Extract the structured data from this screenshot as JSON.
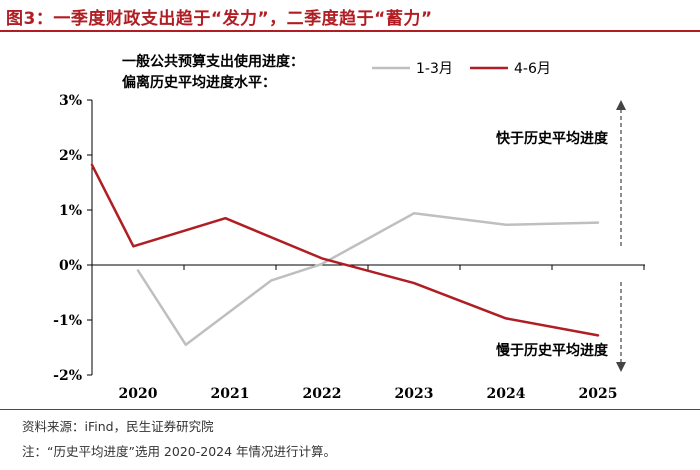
{
  "figure": {
    "title": "图3：一季度财政支出趋于“发力”，二季度趋于“蓄力”",
    "source": "资料来源：iFind，民生证券研究院",
    "note": "注：“历史平均进度”选用 2020-2024 年情况进行计算。"
  },
  "chart_data": {
    "type": "line",
    "title_lines": [
      "一般公共预算支出使用进度：",
      "偏离历史平均进度水平："
    ],
    "xlabel": "",
    "ylabel": "",
    "categories": [
      "2020",
      "2021",
      "2022",
      "2023",
      "2024",
      "2025"
    ],
    "ylim": [
      -2,
      3
    ],
    "yticks": [
      -2,
      -1,
      0,
      1,
      2,
      3
    ],
    "ytick_labels": [
      "-2%",
      "-1%",
      "0%",
      "1%",
      "2%",
      "3%"
    ],
    "grid": false,
    "legend_position": "top-right",
    "series": [
      {
        "name": "1-3月",
        "color": "#bfbfbf",
        "points": [
          [
            0.0,
            -0.1
          ],
          [
            0.52,
            -1.45
          ],
          [
            1.45,
            -0.28
          ],
          [
            2.0,
            0.02
          ],
          [
            3.0,
            0.94
          ],
          [
            4.0,
            0.73
          ],
          [
            5.0,
            0.77
          ]
        ]
      },
      {
        "name": "4-6月",
        "color": "#b01e23",
        "points": [
          [
            -0.5,
            1.82
          ],
          [
            -0.05,
            0.34
          ],
          [
            0.95,
            0.85
          ],
          [
            2.0,
            0.12
          ],
          [
            3.0,
            -0.33
          ],
          [
            4.0,
            -0.97
          ],
          [
            5.0,
            -1.28
          ]
        ]
      }
    ],
    "annotations": {
      "above": "快于历史平均进度",
      "below": "慢于历史平均进度"
    }
  }
}
